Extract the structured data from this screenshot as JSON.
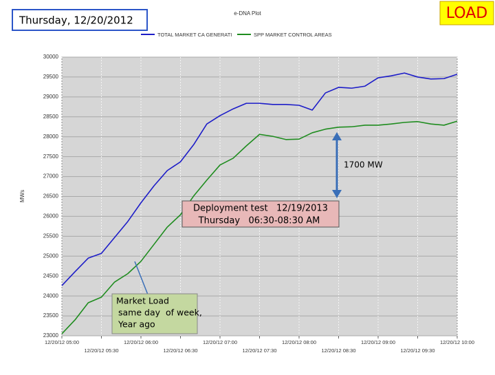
{
  "header": {
    "date": "Thursday, 12/20/2012",
    "badge": "LOAD"
  },
  "chart_data": {
    "type": "line",
    "title": "e-DNA Plot",
    "y_label": "MWs",
    "xlim": [
      300,
      600
    ],
    "xticks": [
      {
        "value": 300,
        "label": "12/20/12 05:00"
      },
      {
        "value": 330,
        "label": "12/20/12 05:30"
      },
      {
        "value": 360,
        "label": "12/20/12 06:00"
      },
      {
        "value": 390,
        "label": "12/20/12 06:30"
      },
      {
        "value": 420,
        "label": "12/20/12 07:00"
      },
      {
        "value": 450,
        "label": "12/20/12 07:30"
      },
      {
        "value": 480,
        "label": "12/20/12 08:00"
      },
      {
        "value": 510,
        "label": "12/20/12 08:30"
      },
      {
        "value": 540,
        "label": "12/20/12 09:00"
      },
      {
        "value": 570,
        "label": "12/20/12 09:30"
      },
      {
        "value": 600,
        "label": "12/20/12 10:00"
      }
    ],
    "ylim": [
      23000,
      30000
    ],
    "yticks": [
      23000,
      23500,
      24000,
      24500,
      25000,
      25500,
      26000,
      26500,
      27000,
      27500,
      28000,
      28500,
      29000,
      29500,
      30000
    ],
    "grid": true,
    "x": [
      300,
      310,
      320,
      330,
      340,
      350,
      360,
      370,
      380,
      390,
      400,
      410,
      420,
      430,
      440,
      450,
      460,
      470,
      480,
      490,
      500,
      510,
      520,
      530,
      540,
      550,
      560,
      570,
      580,
      590,
      600
    ],
    "series": [
      {
        "name": "TOTAL MARKET CA GENERATI",
        "color": "#1c1cc8",
        "values": [
          24260,
          24610,
          24950,
          25070,
          25470,
          25870,
          26340,
          26770,
          27150,
          27370,
          27800,
          28320,
          28530,
          28700,
          28840,
          28840,
          28810,
          28810,
          28790,
          28670,
          29100,
          29240,
          29220,
          29270,
          29480,
          29530,
          29600,
          29500,
          29450,
          29460,
          29570
        ]
      },
      {
        "name": "SPP MARKET CONTROL AREAS",
        "color": "#1e8c1e",
        "values": [
          23050,
          23400,
          23830,
          23970,
          24350,
          24560,
          24870,
          25300,
          25730,
          26040,
          26510,
          26910,
          27290,
          27460,
          27770,
          28060,
          28010,
          27930,
          27940,
          28100,
          28190,
          28240,
          28250,
          28290,
          28290,
          28320,
          28360,
          28380,
          28320,
          28290,
          28390
        ]
      }
    ],
    "annotations": [
      "1700 MW",
      "Deployment test   12/19/2013",
      "Thursday   06:30-08:30 AM",
      "Market Load",
      "same day  of week,",
      "Year ago"
    ]
  }
}
